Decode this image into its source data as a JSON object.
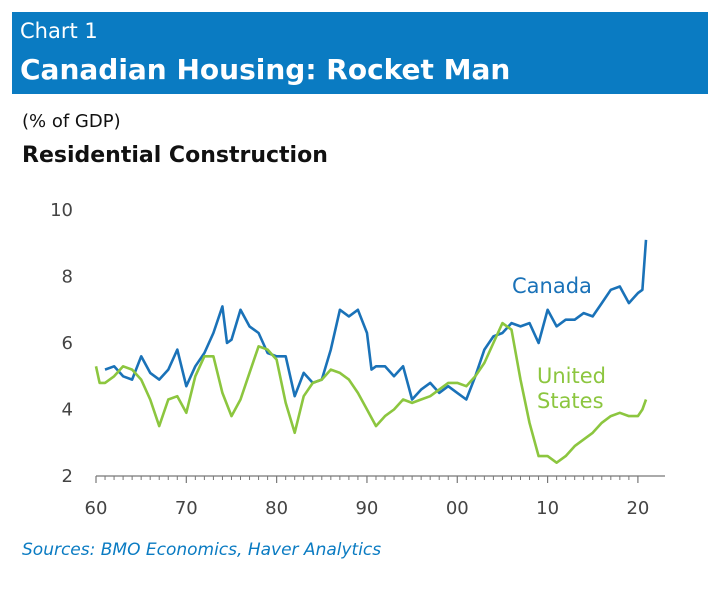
{
  "header": {
    "chart_number": "Chart 1",
    "title": "Canadian Housing: Rocket Man"
  },
  "units_label": "(% of GDP)",
  "subtitle": "Residential Construction",
  "source": "Sources: BMO Economics, Haver Analytics",
  "colors": {
    "banner": "#0a7bc2",
    "canada": "#1a72b8",
    "united_states": "#8cc63f",
    "axis": "#777777"
  },
  "chart_data": {
    "type": "line",
    "title": "Residential Construction",
    "ylabel": "(% of GDP)",
    "xlim": [
      1960,
      2023
    ],
    "ylim": [
      2,
      10
    ],
    "xticks": [
      1960,
      1970,
      1980,
      1990,
      2000,
      2010,
      2020
    ],
    "xtick_labels": [
      "60",
      "70",
      "80",
      "90",
      "00",
      "10",
      "20"
    ],
    "yticks": [
      2,
      4,
      6,
      8,
      10
    ],
    "ytick_labels": [
      "2",
      "4",
      "6",
      "8",
      "10"
    ],
    "grid": false,
    "series": [
      {
        "name": "Canada",
        "label_lines": [
          "Canada"
        ],
        "color": "#1a72b8",
        "points": [
          [
            1961,
            5.2
          ],
          [
            1962,
            5.3
          ],
          [
            1963,
            5.0
          ],
          [
            1964,
            4.9
          ],
          [
            1965,
            5.6
          ],
          [
            1966,
            5.1
          ],
          [
            1967,
            4.9
          ],
          [
            1968,
            5.2
          ],
          [
            1969,
            5.8
          ],
          [
            1970,
            4.7
          ],
          [
            1971,
            5.3
          ],
          [
            1972,
            5.7
          ],
          [
            1973,
            6.3
          ],
          [
            1974,
            7.1
          ],
          [
            1974.5,
            6.0
          ],
          [
            1975,
            6.1
          ],
          [
            1976,
            7.0
          ],
          [
            1977,
            6.5
          ],
          [
            1978,
            6.3
          ],
          [
            1979,
            5.7
          ],
          [
            1980,
            5.6
          ],
          [
            1981,
            5.6
          ],
          [
            1982,
            4.4
          ],
          [
            1983,
            5.1
          ],
          [
            1984,
            4.8
          ],
          [
            1985,
            4.9
          ],
          [
            1986,
            5.8
          ],
          [
            1987,
            7.0
          ],
          [
            1988,
            6.8
          ],
          [
            1989,
            7.0
          ],
          [
            1990,
            6.3
          ],
          [
            1990.5,
            5.2
          ],
          [
            1991,
            5.3
          ],
          [
            1992,
            5.3
          ],
          [
            1993,
            5.0
          ],
          [
            1994,
            5.3
          ],
          [
            1995,
            4.3
          ],
          [
            1996,
            4.6
          ],
          [
            1997,
            4.8
          ],
          [
            1998,
            4.5
          ],
          [
            1999,
            4.7
          ],
          [
            2000,
            4.5
          ],
          [
            2001,
            4.3
          ],
          [
            2002,
            5.0
          ],
          [
            2003,
            5.8
          ],
          [
            2004,
            6.2
          ],
          [
            2005,
            6.3
          ],
          [
            2006,
            6.6
          ],
          [
            2007,
            6.5
          ],
          [
            2008,
            6.6
          ],
          [
            2009,
            6.0
          ],
          [
            2010,
            7.0
          ],
          [
            2011,
            6.5
          ],
          [
            2012,
            6.7
          ],
          [
            2013,
            6.7
          ],
          [
            2014,
            6.9
          ],
          [
            2015,
            6.8
          ],
          [
            2016,
            7.2
          ],
          [
            2017,
            7.6
          ],
          [
            2018,
            7.7
          ],
          [
            2019,
            7.2
          ],
          [
            2020,
            7.5
          ],
          [
            2020.5,
            7.6
          ],
          [
            2020.9,
            9.1
          ]
        ]
      },
      {
        "name": "United States",
        "label_lines": [
          "United",
          "States"
        ],
        "color": "#8cc63f",
        "points": [
          [
            1960,
            5.3
          ],
          [
            1960.4,
            4.8
          ],
          [
            1961,
            4.8
          ],
          [
            1962,
            5.0
          ],
          [
            1963,
            5.3
          ],
          [
            1964,
            5.2
          ],
          [
            1965,
            4.9
          ],
          [
            1966,
            4.3
          ],
          [
            1967,
            3.5
          ],
          [
            1968,
            4.3
          ],
          [
            1969,
            4.4
          ],
          [
            1970,
            3.9
          ],
          [
            1971,
            5.0
          ],
          [
            1972,
            5.6
          ],
          [
            1973,
            5.6
          ],
          [
            1974,
            4.5
          ],
          [
            1975,
            3.8
          ],
          [
            1976,
            4.3
          ],
          [
            1977,
            5.1
          ],
          [
            1978,
            5.9
          ],
          [
            1979,
            5.8
          ],
          [
            1980,
            5.5
          ],
          [
            1981,
            4.2
          ],
          [
            1982,
            3.3
          ],
          [
            1983,
            4.4
          ],
          [
            1984,
            4.8
          ],
          [
            1985,
            4.9
          ],
          [
            1986,
            5.2
          ],
          [
            1987,
            5.1
          ],
          [
            1988,
            4.9
          ],
          [
            1989,
            4.5
          ],
          [
            1990,
            4.0
          ],
          [
            1991,
            3.5
          ],
          [
            1992,
            3.8
          ],
          [
            1993,
            4.0
          ],
          [
            1994,
            4.3
          ],
          [
            1995,
            4.2
          ],
          [
            1996,
            4.3
          ],
          [
            1997,
            4.4
          ],
          [
            1998,
            4.6
          ],
          [
            1999,
            4.8
          ],
          [
            2000,
            4.8
          ],
          [
            2001,
            4.7
          ],
          [
            2002,
            5.0
          ],
          [
            2003,
            5.4
          ],
          [
            2004,
            6.0
          ],
          [
            2005,
            6.6
          ],
          [
            2006,
            6.4
          ],
          [
            2007,
            4.9
          ],
          [
            2008,
            3.6
          ],
          [
            2009,
            2.6
          ],
          [
            2010,
            2.6
          ],
          [
            2011,
            2.4
          ],
          [
            2012,
            2.6
          ],
          [
            2013,
            2.9
          ],
          [
            2014,
            3.1
          ],
          [
            2015,
            3.3
          ],
          [
            2016,
            3.6
          ],
          [
            2017,
            3.8
          ],
          [
            2018,
            3.9
          ],
          [
            2019,
            3.8
          ],
          [
            2020,
            3.8
          ],
          [
            2020.5,
            4.0
          ],
          [
            2020.9,
            4.3
          ]
        ]
      }
    ]
  }
}
